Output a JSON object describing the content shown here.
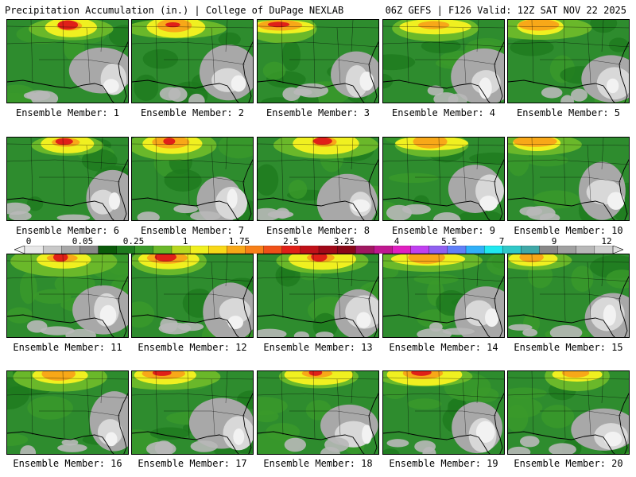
{
  "header": {
    "title_left": "Precipitation Accumulation (in.) | College of DuPage NEXLAB",
    "title_right": "06Z GEFS | F126 Valid: 12Z SAT NOV 22 2025"
  },
  "legend": {
    "tick_labels": [
      "0",
      "0.05",
      "0.25",
      "1",
      "1.75",
      "2.5",
      "3.25",
      "4",
      "5.5",
      "7",
      "9",
      "12"
    ],
    "colors": [
      "#e8e8e8",
      "#c8c8c8",
      "#a8a8a8",
      "#888888",
      "#0a5a0a",
      "#1e7a1e",
      "#3a9a2a",
      "#6ab82a",
      "#b8d820",
      "#f0f020",
      "#f8d818",
      "#f8a818",
      "#f88018",
      "#f05018",
      "#e02018",
      "#c01018",
      "#a00818",
      "#880818",
      "#a01860",
      "#c01890",
      "#e020c0",
      "#c040f0",
      "#9060f0",
      "#6080f8",
      "#30b0f8",
      "#20e8f0",
      "#30c8c8",
      "#40a8a8",
      "#888888",
      "#a0a0a0",
      "#b8b8b8",
      "#d0d0d0"
    ]
  },
  "members": [
    {
      "label": "Ensemble Member: 1"
    },
    {
      "label": "Ensemble Member: 2"
    },
    {
      "label": "Ensemble Member: 3"
    },
    {
      "label": "Ensemble Member: 4"
    },
    {
      "label": "Ensemble Member: 5"
    },
    {
      "label": "Ensemble Member: 6"
    },
    {
      "label": "Ensemble Member: 7"
    },
    {
      "label": "Ensemble Member: 8"
    },
    {
      "label": "Ensemble Member: 9"
    },
    {
      "label": "Ensemble Member: 10"
    },
    {
      "label": "Ensemble Member: 11"
    },
    {
      "label": "Ensemble Member: 12"
    },
    {
      "label": "Ensemble Member: 13"
    },
    {
      "label": "Ensemble Member: 14"
    },
    {
      "label": "Ensemble Member: 15"
    },
    {
      "label": "Ensemble Member: 16"
    },
    {
      "label": "Ensemble Member: 17"
    },
    {
      "label": "Ensemble Member: 18"
    },
    {
      "label": "Ensemble Member: 19"
    },
    {
      "label": "Ensemble Member: 20"
    }
  ]
}
